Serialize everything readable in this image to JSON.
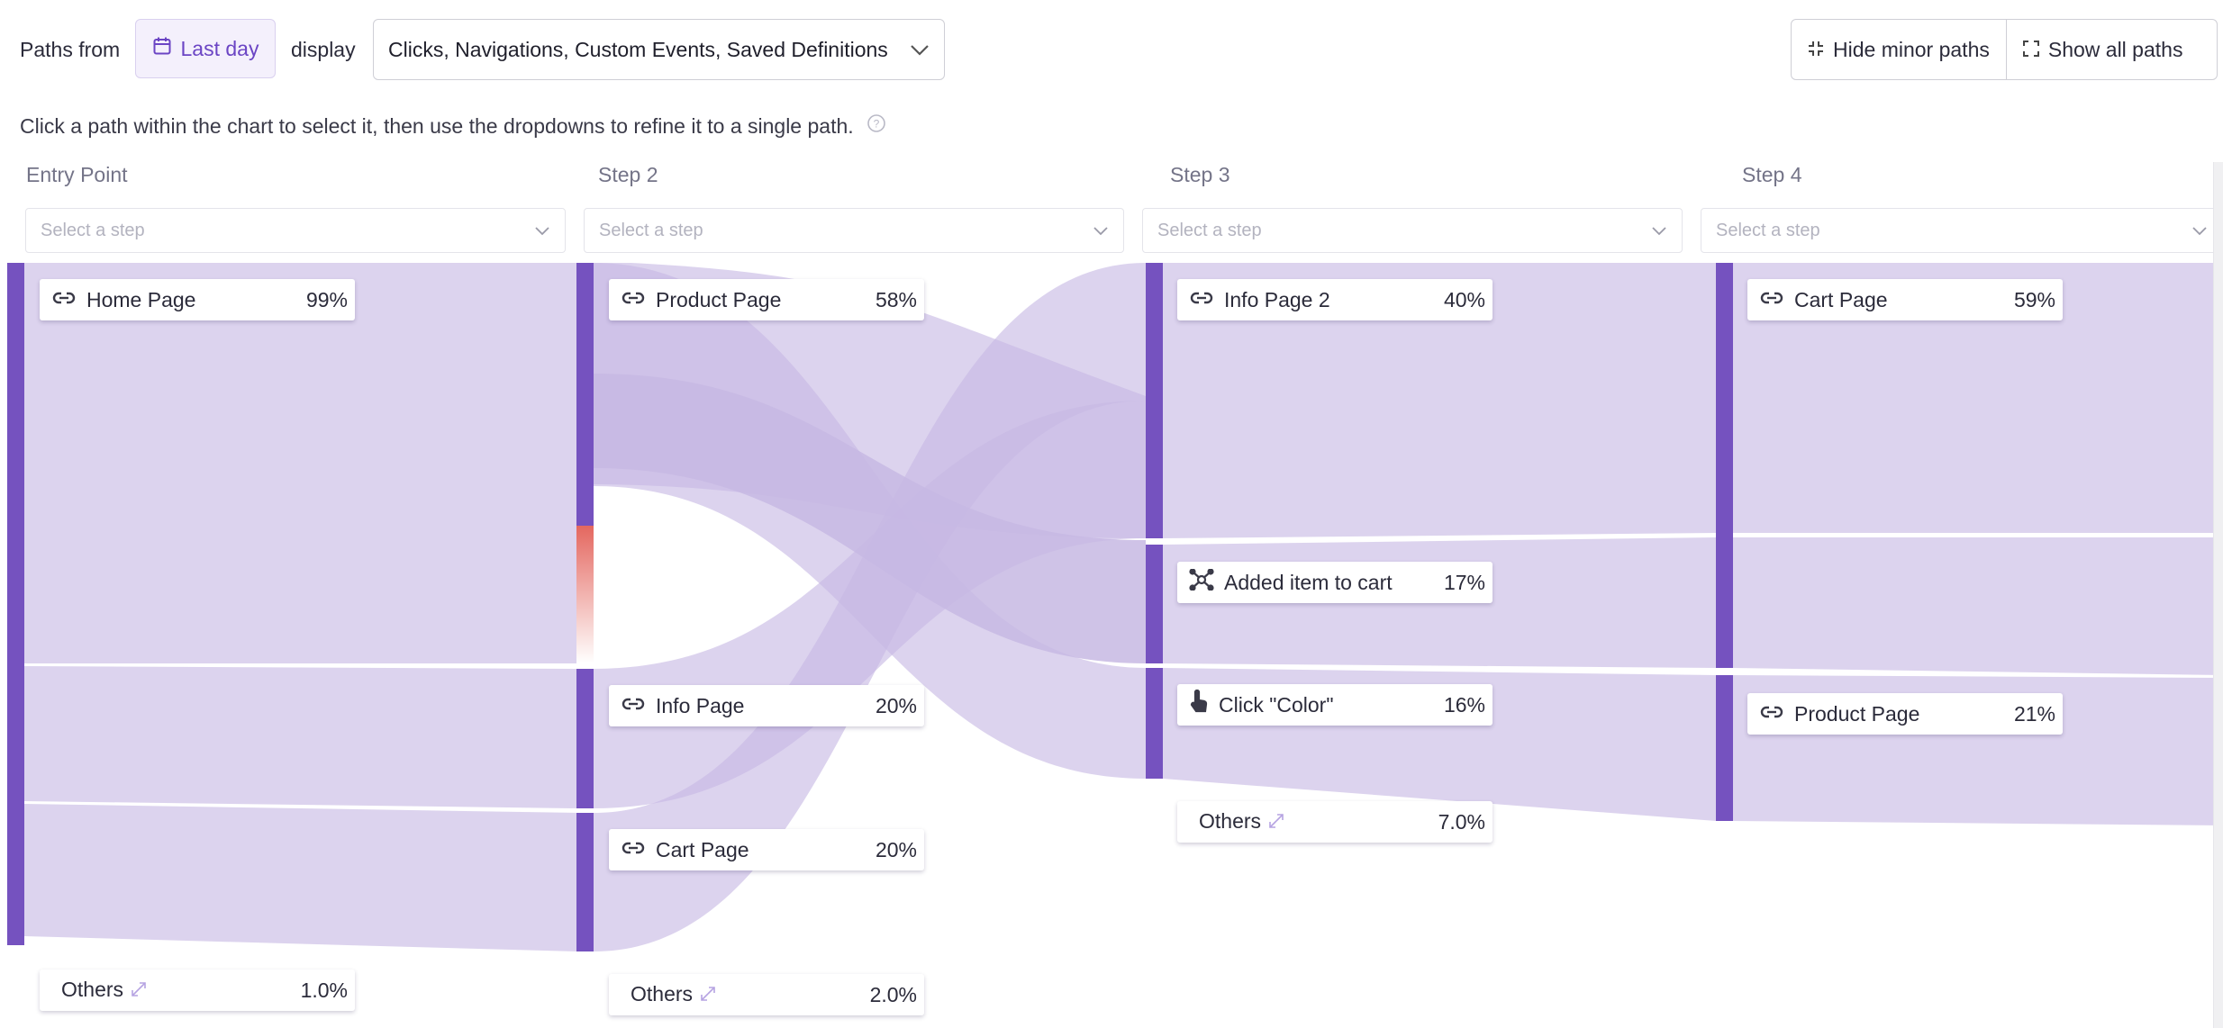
{
  "header": {
    "paths_from_label": "Paths from",
    "date_range": "Last day",
    "display_label": "display",
    "display_value": "Clicks, Navigations, Custom Events, Saved Definitions",
    "hide_minor_paths": "Hide minor paths",
    "show_all_paths": "Show all paths"
  },
  "hint": "Click a path within the chart to select it, then use the dropdowns to refine it to a single path.",
  "steps": [
    {
      "label": "Entry Point",
      "placeholder": "Select a step"
    },
    {
      "label": "Step 2",
      "placeholder": "Select a step"
    },
    {
      "label": "Step 3",
      "placeholder": "Select a step"
    },
    {
      "label": "Step 4",
      "placeholder": "Select a step"
    }
  ],
  "nodes": {
    "entry_home": {
      "name": "Home Page",
      "pct": "99%",
      "icon": "link-icon"
    },
    "entry_others": {
      "name": "Others",
      "pct": "1.0%"
    },
    "s2_product": {
      "name": "Product Page",
      "pct": "58%",
      "icon": "link-icon"
    },
    "s2_info": {
      "name": "Info Page",
      "pct": "20%",
      "icon": "link-icon"
    },
    "s2_cart": {
      "name": "Cart Page",
      "pct": "20%",
      "icon": "link-icon"
    },
    "s2_others": {
      "name": "Others",
      "pct": "2.0%"
    },
    "s3_info2": {
      "name": "Info Page 2",
      "pct": "40%",
      "icon": "link-icon"
    },
    "s3_added": {
      "name": "Added item to cart",
      "pct": "17%",
      "icon": "custom-event-icon"
    },
    "s3_click": {
      "name": "Click \"Color\"",
      "pct": "16%",
      "icon": "click-icon"
    },
    "s3_others": {
      "name": "Others",
      "pct": "7.0%"
    },
    "s4_cart": {
      "name": "Cart Page",
      "pct": "59%",
      "icon": "link-icon"
    },
    "s4_product": {
      "name": "Product Page",
      "pct": "21%",
      "icon": "link-icon"
    }
  },
  "colors": {
    "accent": "#6b45c4",
    "node_bar": "#7552bf",
    "flow": "#c7b8e3",
    "dropoff": "#e4675f"
  }
}
